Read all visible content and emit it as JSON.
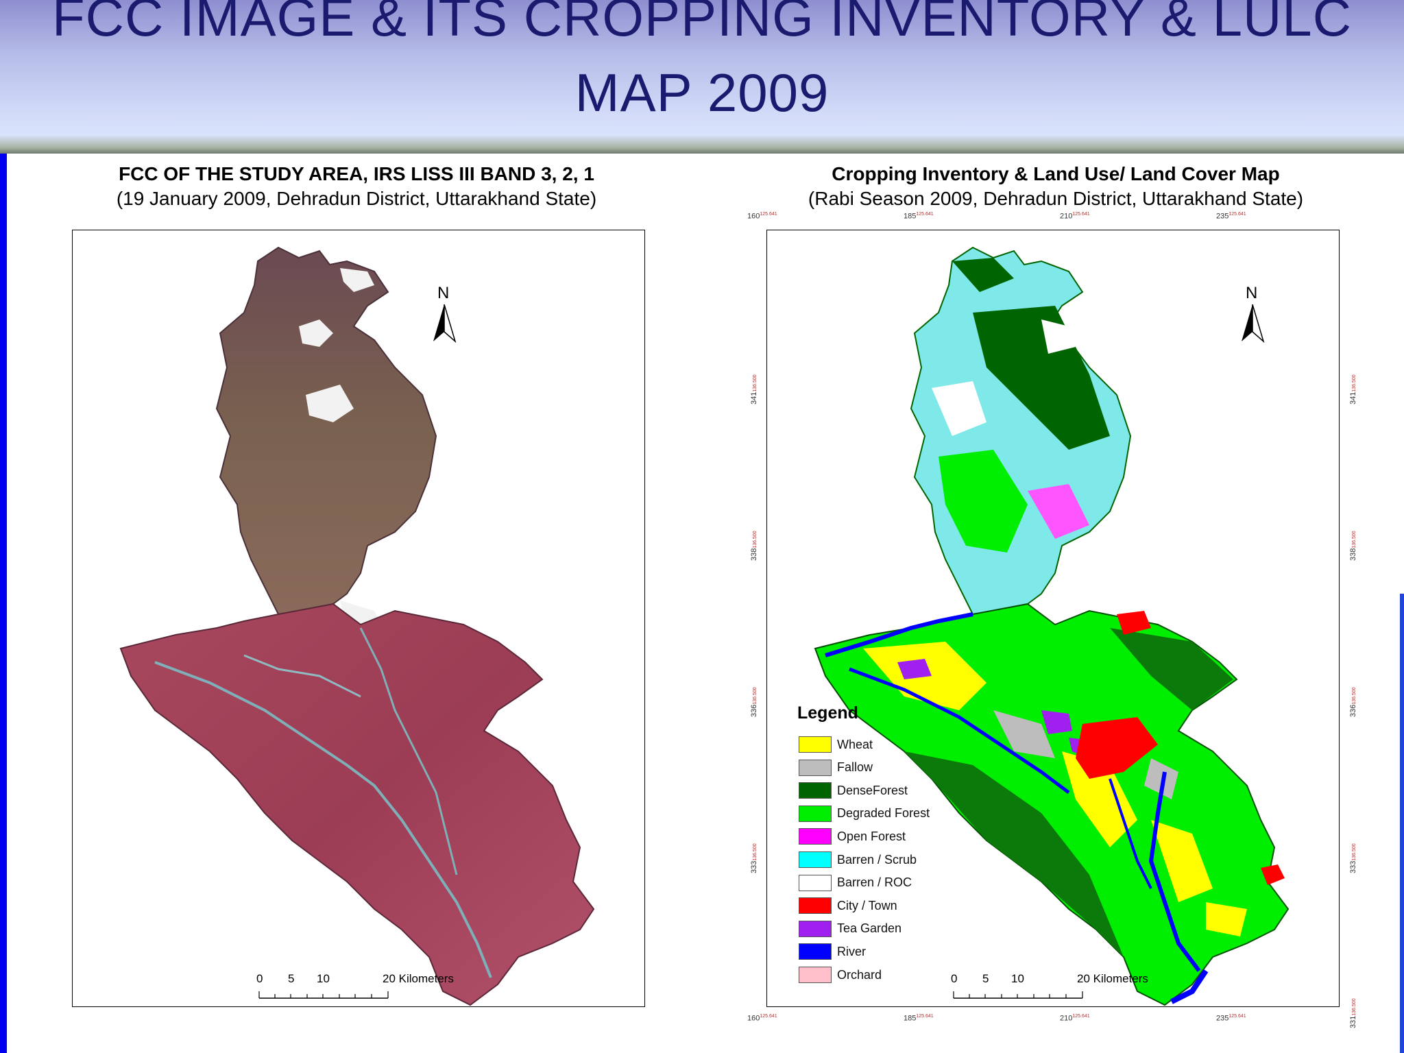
{
  "slide": {
    "title": "FCC IMAGE & ITS CROPPING INVENTORY & LULC\nMAP 2009"
  },
  "left_panel": {
    "title": "FCC OF THE STUDY AREA, IRS LISS III BAND 3, 2, 1",
    "subtitle": "(19 January 2009, Dehradun District, Uttarakhand State)",
    "north": "N",
    "scale": {
      "ticks": [
        "0",
        "5",
        "10"
      ],
      "last": "20 Kilometers"
    }
  },
  "right_panel": {
    "title": "Cropping Inventory & Land Use/ Land Cover Map",
    "subtitle": "(Rabi Season 2009, Dehradun District, Uttarakhand State)",
    "north": "N",
    "scale": {
      "ticks": [
        "0",
        "5",
        "10"
      ],
      "last": "20 Kilometers"
    },
    "grid_x": [
      {
        "main": "160",
        "minor": "125.641"
      },
      {
        "main": "185",
        "minor": "125.641"
      },
      {
        "main": "210",
        "minor": "125.641"
      },
      {
        "main": "235",
        "minor": "125.641"
      }
    ],
    "grid_y": [
      {
        "main": "341",
        "minor": "136.500"
      },
      {
        "main": "338",
        "minor": "136.500"
      },
      {
        "main": "336",
        "minor": "136.500"
      },
      {
        "main": "333",
        "minor": "136.500"
      },
      {
        "main": "331",
        "minor": "136.500"
      }
    ],
    "legend": {
      "title": "Legend",
      "items": [
        {
          "label": "Wheat",
          "color": "#ffff00"
        },
        {
          "label": "Fallow",
          "color": "#bdbdbd"
        },
        {
          "label": "DenseForest",
          "color": "#006400"
        },
        {
          "label": "Degraded Forest",
          "color": "#00ee00"
        },
        {
          "label": "Open Forest",
          "color": "#ff00ff"
        },
        {
          "label": "Barren / Scrub",
          "color": "#00ffff"
        },
        {
          "label": "Barren / ROC",
          "color": "#ffffff"
        },
        {
          "label": "City / Town",
          "color": "#ff0000"
        },
        {
          "label": "Tea Garden",
          "color": "#a020f0"
        },
        {
          "label": "River",
          "color": "#0000ff"
        },
        {
          "label": "Orchard",
          "color": "#ffc0cb"
        }
      ]
    }
  }
}
